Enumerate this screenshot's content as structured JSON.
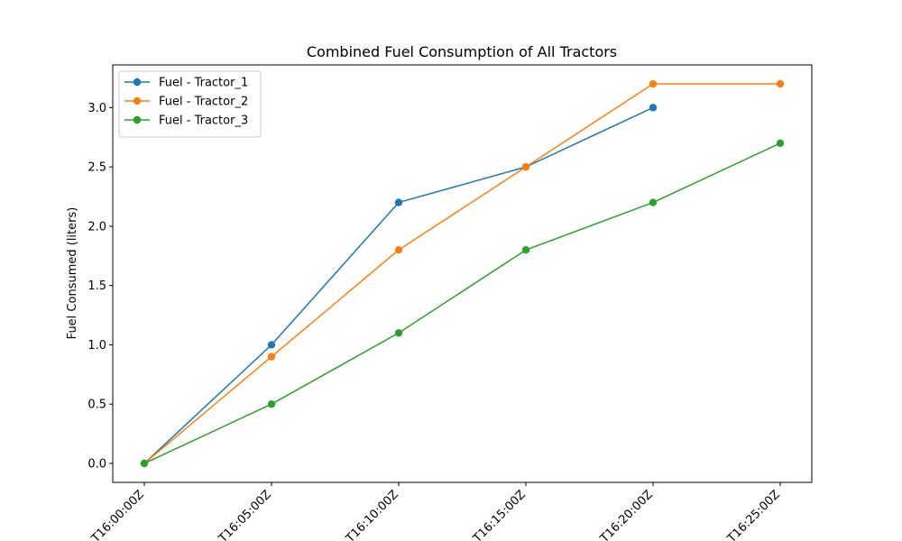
{
  "chart_data": {
    "type": "line",
    "title": "Combined Fuel Consumption of All Tractors",
    "xlabel": "",
    "ylabel": "Fuel Consumed (liters)",
    "x": [
      "T16:00:00Z",
      "T16:05:00Z",
      "T16:10:00Z",
      "T16:15:00Z",
      "T16:20:00Z",
      "T16:25:00Z"
    ],
    "ylim": [
      -0.16,
      3.36
    ],
    "yticks": [
      "0.0",
      "0.5",
      "1.0",
      "1.5",
      "2.0",
      "2.5",
      "3.0"
    ],
    "grid": false,
    "legend_position": "top-left",
    "series": [
      {
        "name": "Fuel - Tractor_1",
        "color": "#1f77b4",
        "marker": "circle",
        "values": [
          0,
          1.0,
          2.2,
          2.5,
          3.0,
          null
        ]
      },
      {
        "name": "Fuel - Tractor_2",
        "color": "#ff7f0e",
        "marker": "circle",
        "values": [
          0,
          0.9,
          1.8,
          2.5,
          3.2,
          3.2
        ]
      },
      {
        "name": "Fuel - Tractor_3",
        "color": "#2ca02c",
        "marker": "circle",
        "values": [
          0,
          0.5,
          1.1,
          1.8,
          2.2,
          2.7
        ]
      }
    ]
  }
}
